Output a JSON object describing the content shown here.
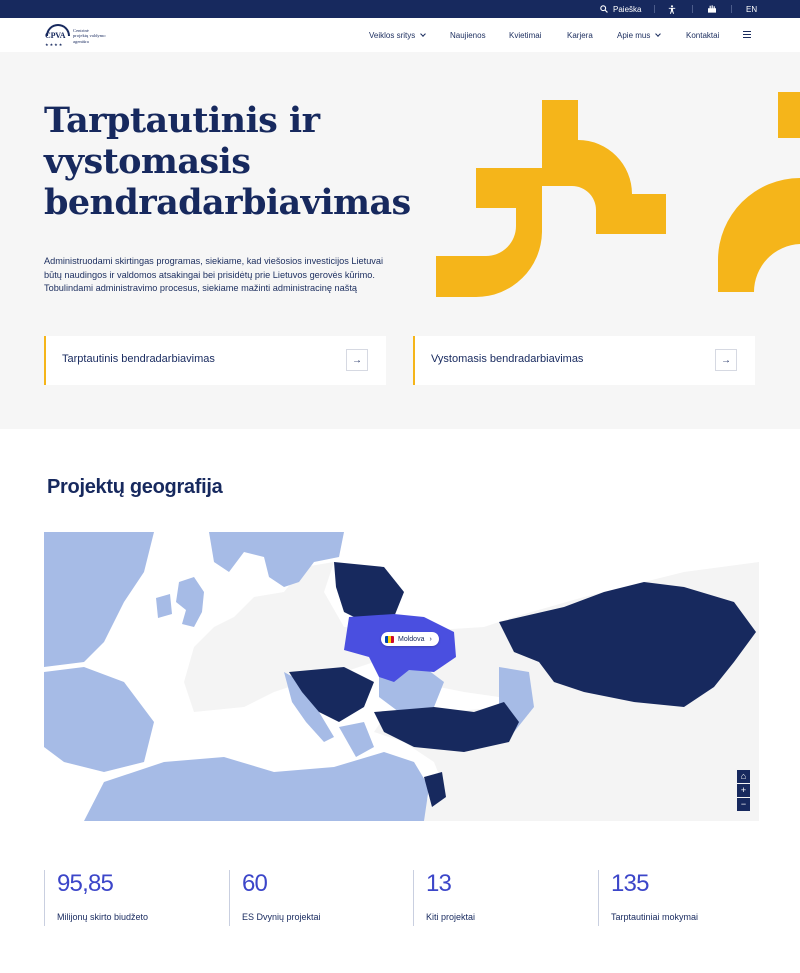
{
  "topbar": {
    "search_label": "Paieška",
    "accessibility_icon": "accessibility-icon",
    "sign_language_icon": "sign-language-icon",
    "language": "EN"
  },
  "header": {
    "logo_abbr": "CPVA",
    "logo_name_lines": [
      "Centrinė",
      "projektų valdymo",
      "agentūra"
    ],
    "nav": [
      {
        "label": "Veiklos sritys",
        "dropdown": true
      },
      {
        "label": "Naujienos",
        "dropdown": false
      },
      {
        "label": "Kvietimai",
        "dropdown": false
      },
      {
        "label": "Karjera",
        "dropdown": false
      },
      {
        "label": "Apie mus",
        "dropdown": true
      },
      {
        "label": "Kontaktai",
        "dropdown": false
      }
    ]
  },
  "hero": {
    "title_lines": [
      "Tarptautinis ir",
      "vystomasis",
      "bendradarbiavimas"
    ],
    "lead": "Administruodami skirtingas programas, siekiame, kad viešosios investicijos Lietuvai būtų naudingos ir valdomos atsakingai bei prisidėtų prie Lietuvos gerovės kūrimo. Tobulindami administravimo procesus, siekiame mažinti administracinę naštą",
    "cards": [
      {
        "label": "Tarptautinis bendradarbiavimas"
      },
      {
        "label": "Vystomasis bendradarbiavimas"
      }
    ],
    "accent_color": "#f5b51a"
  },
  "geography": {
    "title": "Projektų geografija",
    "tooltip_country": "Moldova",
    "colors": {
      "active": "#17295e",
      "highlight": "#4a4fe0",
      "partner": "#a6bbe6",
      "other": "#ffffff",
      "background": "#f4f4f4"
    },
    "controls": [
      "home-icon",
      "zoom-in-icon",
      "zoom-out-icon"
    ]
  },
  "stats": [
    {
      "value": "95,85",
      "caption": "Milijonų skirto biudžeto"
    },
    {
      "value": "60",
      "caption": "ES Dvynių projektai"
    },
    {
      "value": "13",
      "caption": "Kiti projektai"
    },
    {
      "value": "135",
      "caption": "Tarptautiniai mokymai"
    }
  ]
}
